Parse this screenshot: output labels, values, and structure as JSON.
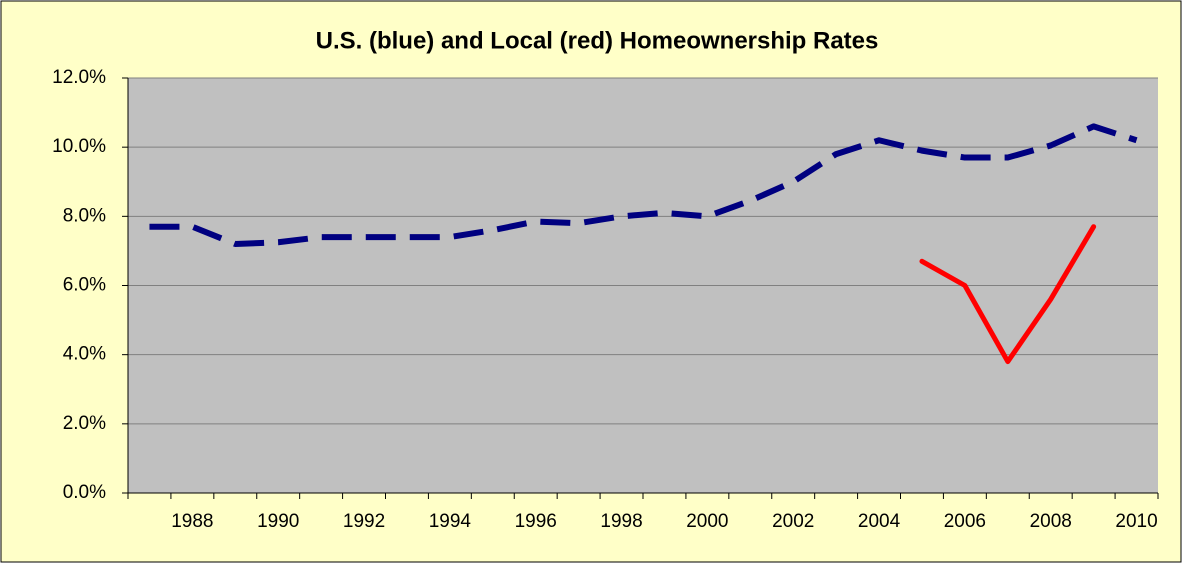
{
  "chart_data": {
    "type": "line",
    "title": "U.S. (blue) and Local (red) Homeownership Rates",
    "categories": [
      null,
      "1988",
      null,
      "1990",
      null,
      "1992",
      null,
      "1994",
      null,
      "1996",
      null,
      "1998",
      null,
      "2000",
      null,
      "2002",
      null,
      "2004",
      null,
      "2006",
      null,
      "2008",
      null,
      "2010"
    ],
    "series": [
      {
        "color": "#000080",
        "dashed": true,
        "values": [
          7.7,
          7.7,
          7.2,
          7.25,
          7.4,
          7.4,
          7.4,
          7.4,
          7.6,
          7.85,
          7.8,
          8.0,
          8.1,
          8.0,
          8.45,
          9.0,
          9.8,
          10.2,
          9.9,
          9.7,
          9.7,
          10.05,
          10.6,
          10.2
        ]
      },
      {
        "color": "#ff0000",
        "dashed": false,
        "values": [
          null,
          null,
          null,
          null,
          null,
          null,
          null,
          null,
          null,
          null,
          null,
          null,
          null,
          null,
          null,
          null,
          null,
          null,
          6.7,
          6.0,
          3.8,
          5.6,
          7.7,
          null
        ]
      }
    ],
    "ylim": [
      0,
      12
    ],
    "yticks": [
      {
        "value": 0,
        "label": "0.0%"
      },
      {
        "value": 2,
        "label": "2.0%"
      },
      {
        "value": 4,
        "label": "4.0%"
      },
      {
        "value": 6,
        "label": "6.0%"
      },
      {
        "value": 8,
        "label": "8.0%"
      },
      {
        "value": 10,
        "label": "10.0%"
      },
      {
        "value": 12,
        "label": "12.0%"
      }
    ],
    "grid": true
  }
}
